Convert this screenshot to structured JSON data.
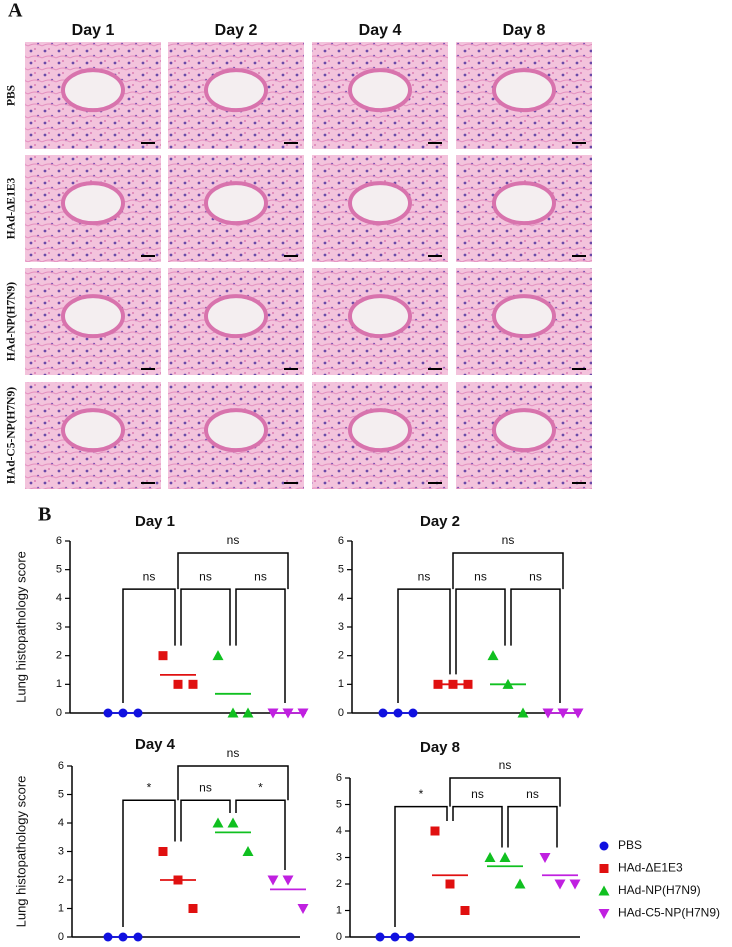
{
  "panel_a": {
    "label": "A",
    "columns": [
      "Day 1",
      "Day 2",
      "Day 4",
      "Day 8"
    ],
    "rows": [
      "PBS",
      "HAd-ΔE1E3",
      "HAd-NP(H7N9)",
      "HAd-C5-NP(H7N9)"
    ]
  },
  "panel_b_label": "B",
  "legend": [
    {
      "name": "PBS",
      "color": "#1010e0",
      "marker": "circle"
    },
    {
      "name": "HAd-ΔE1E3",
      "color": "#e01010",
      "marker": "square"
    },
    {
      "name": "HAd-NP(H7N9)",
      "color": "#10c020",
      "marker": "triangle"
    },
    {
      "name": "HAd-C5-NP(H7N9)",
      "color": "#c020e0",
      "marker": "triangle-down"
    }
  ],
  "chart_data": [
    {
      "type": "scatter",
      "title": "Day 1",
      "ylabel": "Lung histopathology score",
      "ylim": [
        0,
        6
      ],
      "yticks": [
        0,
        1,
        2,
        3,
        4,
        5,
        6
      ],
      "series": [
        {
          "values": [
            0,
            0,
            0
          ],
          "mean": 0
        },
        {
          "values": [
            2,
            1,
            1
          ],
          "mean": 1.33
        },
        {
          "values": [
            2,
            0,
            0
          ],
          "mean": 0.67
        },
        {
          "values": [
            0,
            0,
            0
          ],
          "mean": 0
        }
      ],
      "brackets": [
        "ns",
        "ns",
        "ns",
        "ns"
      ]
    },
    {
      "type": "scatter",
      "title": "Day 2",
      "ylim": [
        0,
        6
      ],
      "yticks": [
        0,
        1,
        2,
        3,
        4,
        5,
        6
      ],
      "series": [
        {
          "values": [
            0,
            0,
            0
          ],
          "mean": 0
        },
        {
          "values": [
            1,
            1,
            1
          ],
          "mean": 1
        },
        {
          "values": [
            2,
            1,
            0
          ],
          "mean": 1
        },
        {
          "values": [
            0,
            0,
            0
          ],
          "mean": 0
        }
      ],
      "brackets": [
        "ns",
        "ns",
        "ns",
        "ns"
      ]
    },
    {
      "type": "scatter",
      "title": "Day 4",
      "ylabel": "Lung histopathology score",
      "ylim": [
        0,
        6
      ],
      "yticks": [
        0,
        1,
        2,
        3,
        4,
        5,
        6
      ],
      "series": [
        {
          "values": [
            0,
            0,
            0
          ],
          "mean": 0
        },
        {
          "values": [
            3,
            2,
            1
          ],
          "mean": 2
        },
        {
          "values": [
            4,
            4,
            3
          ],
          "mean": 3.67
        },
        {
          "values": [
            2,
            2,
            1
          ],
          "mean": 1.67
        }
      ],
      "brackets": [
        "*",
        "ns",
        "*",
        "ns"
      ]
    },
    {
      "type": "scatter",
      "title": "Day 8",
      "ylim": [
        0,
        6
      ],
      "yticks": [
        0,
        1,
        2,
        3,
        4,
        5,
        6
      ],
      "series": [
        {
          "values": [
            0,
            0,
            0
          ],
          "mean": 0
        },
        {
          "values": [
            4,
            2,
            1
          ],
          "mean": 2.33
        },
        {
          "values": [
            3,
            3,
            2
          ],
          "mean": 2.67
        },
        {
          "values": [
            3,
            2,
            2
          ],
          "mean": 2.33
        }
      ],
      "brackets": [
        "*",
        "ns",
        "ns",
        "ns"
      ]
    }
  ]
}
